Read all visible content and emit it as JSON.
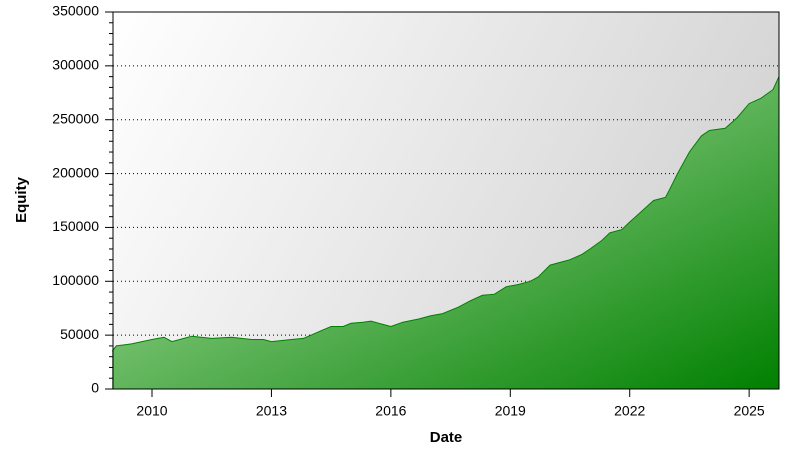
{
  "chart_data": {
    "type": "area",
    "x_label": "Date",
    "y_label": "Equity",
    "x": [
      2009.0,
      2009.1,
      2009.5,
      2010.0,
      2010.3,
      2010.5,
      2010.8,
      2011.0,
      2011.5,
      2012.0,
      2012.5,
      2012.8,
      2013.0,
      2013.5,
      2013.8,
      2014.0,
      2014.3,
      2014.5,
      2014.8,
      2015.0,
      2015.3,
      2015.5,
      2015.8,
      2016.0,
      2016.3,
      2016.7,
      2017.0,
      2017.3,
      2017.7,
      2018.0,
      2018.3,
      2018.6,
      2018.9,
      2019.2,
      2019.5,
      2019.7,
      2020.0,
      2020.3,
      2020.5,
      2020.8,
      2021.0,
      2021.3,
      2021.5,
      2021.8,
      2022.0,
      2022.3,
      2022.6,
      2022.9,
      2023.0,
      2023.2,
      2023.5,
      2023.8,
      2024.0,
      2024.4,
      2024.7,
      2025.0,
      2025.3,
      2025.6,
      2025.75
    ],
    "values": [
      35000,
      40000,
      42000,
      46000,
      48000,
      44000,
      47000,
      49000,
      47000,
      48000,
      46000,
      46000,
      44000,
      46000,
      47000,
      50000,
      55000,
      58000,
      58000,
      61000,
      62000,
      63000,
      60000,
      58000,
      62000,
      65000,
      68000,
      70000,
      76000,
      82000,
      87000,
      88000,
      95000,
      97000,
      100000,
      104000,
      115000,
      118000,
      120000,
      125000,
      130000,
      138000,
      145000,
      148000,
      155000,
      165000,
      175000,
      178000,
      185000,
      200000,
      220000,
      235000,
      240000,
      242000,
      252000,
      265000,
      270000,
      278000,
      290000
    ],
    "color": "#008000",
    "xlim": [
      2009.02,
      2025.75
    ],
    "xticks": [
      2010,
      2013,
      2016,
      2019,
      2022,
      2025
    ],
    "ylim": [
      0,
      350000
    ],
    "yticks": [
      0,
      50000,
      100000,
      150000,
      200000,
      250000,
      300000,
      350000
    ],
    "grid": true
  }
}
